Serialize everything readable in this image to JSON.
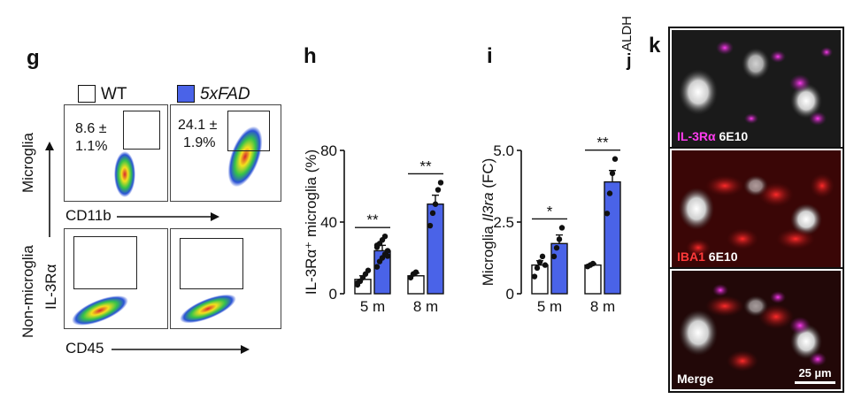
{
  "panel_labels": {
    "g": "g",
    "h": "h",
    "i": "i",
    "j": "j",
    "k": "k",
    "j_title": "ALDH"
  },
  "legend": {
    "wt_label": "WT",
    "fad_label": "5xFAD",
    "wt_color": "#ffffff",
    "fad_color": "#4a63e8"
  },
  "facs": {
    "row_microglia": "Microglia",
    "row_non_microglia": "Non-microglia",
    "y_axis_label": "IL-3Rα",
    "x_axis_top": "CD11b",
    "x_axis_bottom": "CD45",
    "wt_pct_value": "8.6 ±",
    "wt_pct_err": "1.1%",
    "fad_pct_value": "24.1 ±",
    "fad_pct_err": "1.9%"
  },
  "chart_data": [
    {
      "type": "bar",
      "panel": "h",
      "ylabel": "IL-3Rα⁺ microglia (%)",
      "ylim": [
        0,
        80
      ],
      "yticks": [
        "0",
        "40",
        "80"
      ],
      "groups": [
        "5 m",
        "8 m"
      ],
      "series": [
        {
          "name": "WT",
          "values": [
            8,
            10
          ],
          "errors": [
            2,
            1.5
          ]
        },
        {
          "name": "5xFAD",
          "values": [
            24,
            50
          ],
          "errors": [
            3,
            5
          ]
        }
      ],
      "points": {
        "WT_5m": [
          5,
          7,
          9,
          11,
          13,
          6
        ],
        "FAD_5m": [
          15,
          18,
          20,
          22,
          24,
          26,
          28,
          30,
          32,
          21,
          27
        ],
        "WT_8m": [
          9,
          11,
          12
        ],
        "FAD_8m": [
          38,
          45,
          50,
          58,
          62
        ]
      },
      "significance": [
        "**",
        "**"
      ]
    },
    {
      "type": "bar",
      "panel": "i",
      "ylabel_prefix": "Microglia ",
      "ylabel_gene": "Il3ra",
      "ylabel_suffix": " (FC)",
      "ylim": [
        0,
        5
      ],
      "yticks": [
        "0",
        "2.5",
        "5.0"
      ],
      "groups": [
        "5 m",
        "8 m"
      ],
      "series": [
        {
          "name": "WT",
          "values": [
            1.0,
            1.0
          ],
          "errors": [
            0.15,
            0.05
          ]
        },
        {
          "name": "5xFAD",
          "values": [
            1.75,
            3.9
          ],
          "errors": [
            0.3,
            0.4
          ]
        }
      ],
      "points": {
        "WT_5m": [
          0.6,
          0.9,
          1.1,
          1.3,
          1.0
        ],
        "FAD_5m": [
          1.3,
          1.6,
          1.9,
          2.3
        ],
        "WT_8m": [
          0.95,
          1.0,
          1.05
        ],
        "FAD_8m": [
          2.8,
          3.5,
          4.2,
          4.7
        ]
      },
      "significance": [
        "*",
        "**"
      ]
    }
  ],
  "micrographs": {
    "panel1_a": "IL-3Rα",
    "panel1_b": " 6E10",
    "panel2_a": "IBA1",
    "panel2_b": " 6E10",
    "panel3": "Merge",
    "scale_bar": "25 µm"
  }
}
